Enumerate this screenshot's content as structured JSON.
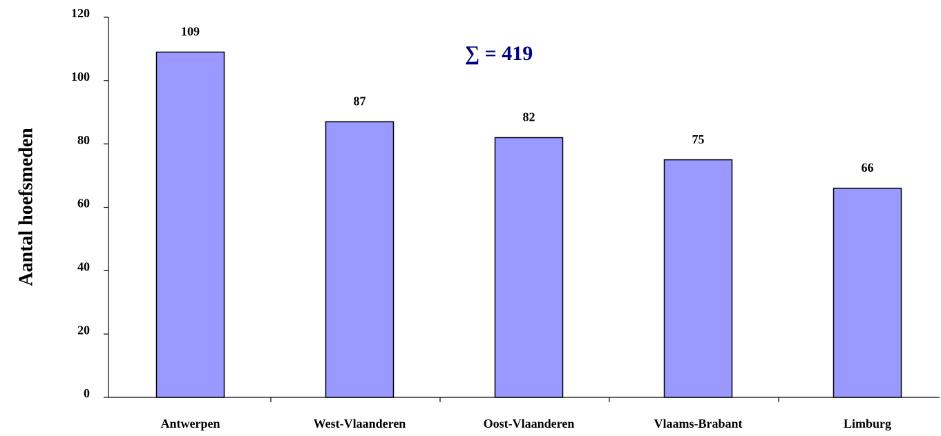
{
  "chart_data": {
    "type": "bar",
    "ylabel": "Aantal hoefsmeden",
    "annotation": "∑ = 419",
    "categories": [
      "Antwerpen",
      "West-Vlaanderen",
      "Oost-Vlaanderen",
      "Vlaams-Brabant",
      "Limburg"
    ],
    "values": [
      109,
      87,
      82,
      75,
      66
    ],
    "color": "#9999ff",
    "ylim": [
      0,
      120
    ],
    "yticks": [
      0,
      20,
      40,
      60,
      80,
      100,
      120
    ],
    "grid": false
  }
}
